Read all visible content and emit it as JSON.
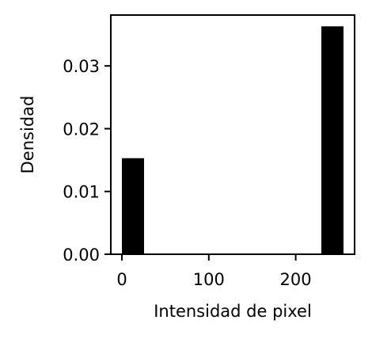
{
  "chart_data": {
    "type": "bar",
    "title": "",
    "xlabel": "Intensidad de pixel",
    "ylabel": "Densidad",
    "bins": [
      {
        "x_start": 0,
        "x_end": 25.5,
        "value": 0.0153
      },
      {
        "x_start": 25.5,
        "x_end": 51,
        "value": 0
      },
      {
        "x_start": 51,
        "x_end": 76.5,
        "value": 0
      },
      {
        "x_start": 76.5,
        "x_end": 102,
        "value": 0
      },
      {
        "x_start": 102,
        "x_end": 127.5,
        "value": 0
      },
      {
        "x_start": 127.5,
        "x_end": 153,
        "value": 0
      },
      {
        "x_start": 153,
        "x_end": 178.5,
        "value": 0
      },
      {
        "x_start": 178.5,
        "x_end": 204,
        "value": 0
      },
      {
        "x_start": 204,
        "x_end": 229.5,
        "value": 0
      },
      {
        "x_start": 229.5,
        "x_end": 255,
        "value": 0.0363
      }
    ],
    "xlim": [
      -12.75,
      267.75
    ],
    "ylim": [
      0,
      0.0381
    ],
    "xticks": [
      0,
      100,
      200
    ],
    "xtick_labels": [
      "0",
      "100",
      "200"
    ],
    "yticks": [
      0,
      0.01,
      0.02,
      0.03
    ],
    "ytick_labels": [
      "0.00",
      "0.01",
      "0.02",
      "0.03"
    ],
    "bar_color": "#000000",
    "grid": false,
    "legend": "none"
  }
}
